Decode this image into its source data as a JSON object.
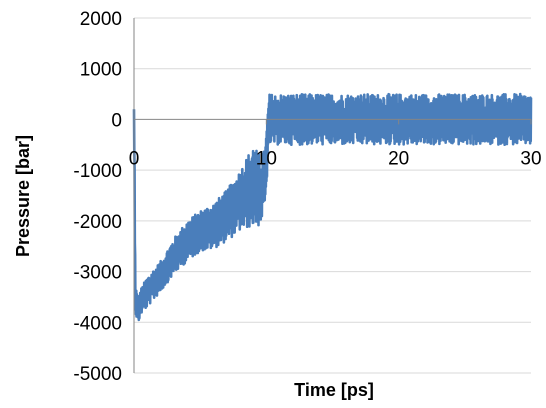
{
  "chart_data": {
    "type": "line",
    "title": "",
    "xlabel": "Time [ps]",
    "ylabel": "Pressure [bar]",
    "xlim": [
      0,
      30
    ],
    "ylim": [
      -5000,
      2000
    ],
    "x_ticks": [
      "0",
      "10",
      "20",
      "30"
    ],
    "y_ticks": [
      "2000",
      "1000",
      "0",
      "-1000",
      "-2000",
      "-3000",
      "-4000",
      "-5000"
    ],
    "grid": true,
    "legend": "none",
    "line_color": "#4a7ebb",
    "series": [
      {
        "x": [
          0,
          0.05,
          0.1,
          0.3,
          0.5,
          1,
          2,
          3,
          4,
          5,
          6,
          7,
          8,
          9,
          9.5,
          9.9,
          10.2,
          11,
          12,
          14,
          16,
          18,
          20,
          22,
          24,
          26,
          27,
          28,
          30
        ],
        "mean": [
          200,
          -1500,
          -3500,
          -3800,
          -3600,
          -3400,
          -3100,
          -2700,
          -2400,
          -2200,
          -2100,
          -1900,
          -1600,
          -1300,
          -1400,
          -1200,
          0,
          0,
          0,
          0,
          0,
          0,
          0,
          0,
          0,
          0,
          0,
          0,
          0
        ],
        "amplitude": [
          0,
          400,
          300,
          250,
          250,
          300,
          300,
          350,
          400,
          400,
          450,
          500,
          600,
          800,
          700,
          600,
          500,
          500,
          500,
          500,
          500,
          500,
          500,
          500,
          500,
          500,
          500,
          500,
          500
        ]
      }
    ]
  }
}
